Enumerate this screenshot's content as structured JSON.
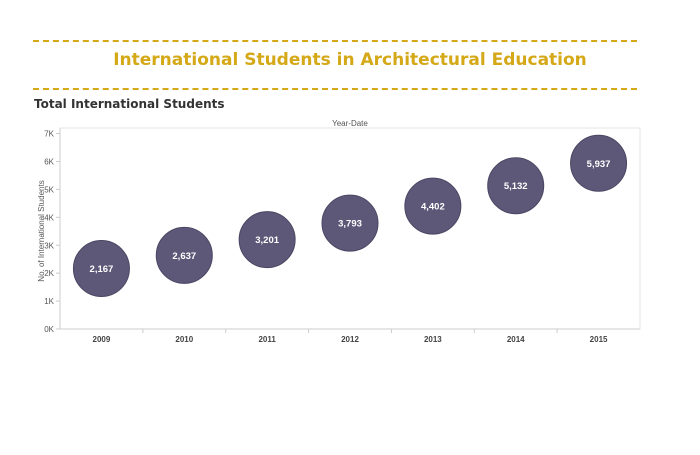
{
  "page": {
    "title": "International Students in Architectural Education",
    "section_title": "Total International Students"
  },
  "colors": {
    "accent": "#d4a817",
    "bubble": "#5e5878",
    "bubble_stroke": "#4a4663",
    "axis": "#cccccc",
    "text": "#555555"
  },
  "chart_data": {
    "type": "scatter",
    "title": "",
    "column_header": "Year-Date",
    "xlabel": "",
    "ylabel": "No. of International Students",
    "categories": [
      "2009",
      "2010",
      "2011",
      "2012",
      "2013",
      "2014",
      "2015"
    ],
    "values": [
      2167,
      2637,
      3201,
      3793,
      4402,
      5132,
      5937
    ],
    "data_labels": [
      "2,167",
      "2,637",
      "3,201",
      "3,793",
      "4,402",
      "5,132",
      "5,937"
    ],
    "ylim": [
      0,
      7200
    ],
    "yticks": [
      0,
      1000,
      2000,
      3000,
      4000,
      5000,
      6000,
      7000
    ],
    "ytick_labels": [
      "0K",
      "1K",
      "2K",
      "3K",
      "4K",
      "5K",
      "6K",
      "7K"
    ],
    "marker": "circle",
    "grid": false
  }
}
